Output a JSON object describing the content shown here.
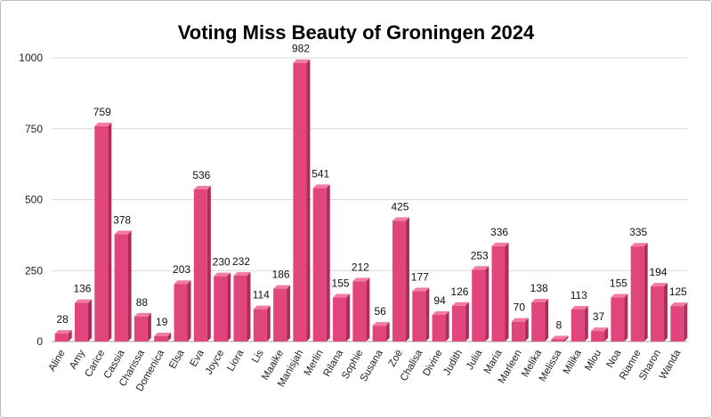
{
  "chart_data": {
    "type": "bar",
    "title": "Voting Miss Beauty of Groningen 2024",
    "xlabel": "",
    "ylabel": "",
    "ylim": [
      0,
      1000
    ],
    "yticks": [
      0,
      250,
      500,
      750,
      1000
    ],
    "grid": true,
    "bar_style": "3d",
    "colors": {
      "bar_front": "#e0457b",
      "bar_side": "#b02a5c",
      "bar_top": "#f27aa3",
      "grid": "#d9d9d9",
      "axis": "#9e9e9e"
    },
    "categories": [
      "Aline",
      "Amy",
      "Carice",
      "Cassia",
      "Charissa",
      "Domenica",
      "Elsa",
      "Eva",
      "Joyce",
      "Liora",
      "Lis",
      "Maaike",
      "Manisjah",
      "Merlin",
      "Rilana",
      "Sophie",
      "Susana",
      "Zoë",
      "Chalisa",
      "Divine",
      "Judith",
      "Julia",
      "Maria",
      "Marleen",
      "Melika",
      "Melissa",
      "Milika",
      "Mlou",
      "Noa",
      "Rianne",
      "Sharon",
      "Wanda"
    ],
    "values": [
      28,
      136,
      759,
      378,
      88,
      19,
      203,
      536,
      230,
      232,
      114,
      186,
      982,
      541,
      155,
      212,
      56,
      425,
      177,
      94,
      126,
      253,
      336,
      70,
      138,
      8,
      113,
      37,
      155,
      335,
      194,
      125
    ]
  }
}
